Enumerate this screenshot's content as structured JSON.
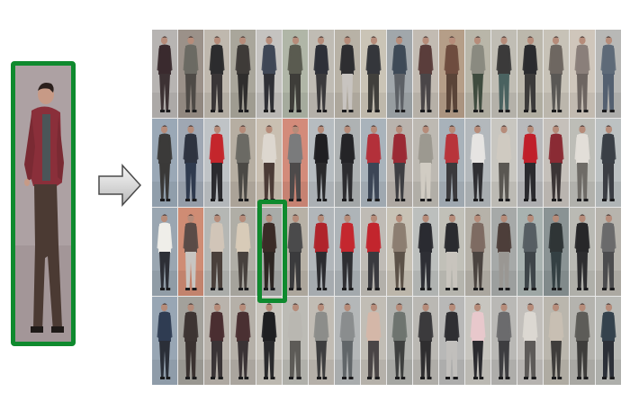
{
  "query": {
    "background": "#ada1a3",
    "jacket_color": "#8a2f3a",
    "pants_color": "#4b3a33",
    "hair_color": "#2a1f1c",
    "skin_color": "#c79a86"
  },
  "highlight_color": "#0f8a2e",
  "gallery": {
    "columns": 18,
    "rows": 4,
    "highlight_index": 40,
    "cells": [
      {
        "bg": "#b7b4b2",
        "top": "#3a2a2e",
        "bottom": "#3d3234"
      },
      {
        "bg": "#9b9189",
        "top": "#6b6a63",
        "bottom": "#4e4a46"
      },
      {
        "bg": "#bfb8ae",
        "top": "#2c2c2e",
        "bottom": "#3a3637"
      },
      {
        "bg": "#a9a69b",
        "top": "#3e3b38",
        "bottom": "#2f2e2d"
      },
      {
        "bg": "#c5c3c0",
        "top": "#3f4756",
        "bottom": "#2f3036"
      },
      {
        "bg": "#b0b6a7",
        "top": "#5a5b50",
        "bottom": "#3e3d39"
      },
      {
        "bg": "#c0bcb4",
        "top": "#2e3038",
        "bottom": "#3b3a3c"
      },
      {
        "bg": "#b8b2a6",
        "top": "#2e2e31",
        "bottom": "#c8c4c0"
      },
      {
        "bg": "#cac4b6",
        "top": "#34363b",
        "bottom": "#41403c"
      },
      {
        "bg": "#a1a7ab",
        "top": "#3e4a57",
        "bottom": "#5d6166"
      },
      {
        "bg": "#c2bbb2",
        "top": "#5a3d3b",
        "bottom": "#4a4648"
      },
      {
        "bg": "#b59e88",
        "top": "#6e4c3f",
        "bottom": "#5a4438"
      },
      {
        "bg": "#b9b6a9",
        "top": "#8a8a80",
        "bottom": "#3f4c3f"
      },
      {
        "bg": "#c0bdb4",
        "top": "#3b3a3a",
        "bottom": "#4a6260"
      },
      {
        "bg": "#bcb8ac",
        "top": "#2a2b2e",
        "bottom": "#3c3b3a"
      },
      {
        "bg": "#c7c2b7",
        "top": "#6e6761",
        "bottom": "#5a5855"
      },
      {
        "bg": "#cfc6bb",
        "top": "#8a7f7a",
        "bottom": "#6d6561"
      },
      {
        "bg": "#b8b8b6",
        "top": "#5e6a78",
        "bottom": "#546070"
      },
      {
        "bg": "#9aa8b6",
        "top": "#3b3a39",
        "bottom": "#3a3938"
      },
      {
        "bg": "#9fa7b3",
        "top": "#2e3340",
        "bottom": "#2f3a4e"
      },
      {
        "bg": "#bfc3c6",
        "top": "#c4262c",
        "bottom": "#2b2b2f"
      },
      {
        "bg": "#b6aea2",
        "top": "#6b6a64",
        "bottom": "#4b4945"
      },
      {
        "bg": "#c9bfb1",
        "top": "#ddd7cf",
        "bottom": "#4b3b36"
      },
      {
        "bg": "#d38b7a",
        "top": "#7a7b7c",
        "bottom": "#4d4a4a"
      },
      {
        "bg": "#b6bcc0",
        "top": "#1f1f22",
        "bottom": "#2a2a2c"
      },
      {
        "bg": "#aeb2b3",
        "top": "#242427",
        "bottom": "#2d2d30"
      },
      {
        "bg": "#a9b3bb",
        "top": "#b3303a",
        "bottom": "#3c4656"
      },
      {
        "bg": "#b9b3ad",
        "top": "#9b2a34",
        "bottom": "#3e3e42"
      },
      {
        "bg": "#bdb9b2",
        "top": "#9c9990",
        "bottom": "#d1ccc3"
      },
      {
        "bg": "#a8b2ba",
        "top": "#b8343b",
        "bottom": "#3b3a3d"
      },
      {
        "bg": "#b3b8bc",
        "top": "#e6e4e2",
        "bottom": "#2f2f33"
      },
      {
        "bg": "#c8c6c0",
        "top": "#cfcac1",
        "bottom": "#5a5752"
      },
      {
        "bg": "#b8b9bb",
        "top": "#c01f2a",
        "bottom": "#2a2a2e"
      },
      {
        "bg": "#c5c0ba",
        "top": "#8a2b34",
        "bottom": "#3b3536"
      },
      {
        "bg": "#bdbdb7",
        "top": "#e2ded8",
        "bottom": "#6e6b66"
      },
      {
        "bg": "#bcc1c2",
        "top": "#3a3f46",
        "bottom": "#3b3e44"
      },
      {
        "bg": "#9aa6b1",
        "top": "#efeee9",
        "bottom": "#2d2f36"
      },
      {
        "bg": "#cf8c74",
        "top": "#5a4b47",
        "bottom": "#c8c5c1"
      },
      {
        "bg": "#b5b7b4",
        "top": "#d1c5b8",
        "bottom": "#4a403b"
      },
      {
        "bg": "#b0aea6",
        "top": "#d8cbb8",
        "bottom": "#47413d"
      },
      {
        "bg": "#a8aba8",
        "top": "#3a2b27",
        "bottom": "#2d2623"
      },
      {
        "bg": "#b7b1a6",
        "top": "#4a4a4b",
        "bottom": "#3b3b3d"
      },
      {
        "bg": "#b1b6ba",
        "top": "#b0232b",
        "bottom": "#2c2c30"
      },
      {
        "bg": "#aeb4b8",
        "top": "#c4272f",
        "bottom": "#2f2f33"
      },
      {
        "bg": "#bfbbb5",
        "top": "#c2252d",
        "bottom": "#3a3a3f"
      },
      {
        "bg": "#c8c2b5",
        "top": "#8c7e71",
        "bottom": "#5c5248"
      },
      {
        "bg": "#bcbfbd",
        "top": "#2a2b31",
        "bottom": "#2e2f35"
      },
      {
        "bg": "#c1c0b8",
        "top": "#2a2b2f",
        "bottom": "#c8c4bd"
      },
      {
        "bg": "#b6b2a9",
        "top": "#7e6b62",
        "bottom": "#4b4440"
      },
      {
        "bg": "#a6a9a8",
        "top": "#4d3e3a",
        "bottom": "#9a9793"
      },
      {
        "bg": "#a8b2b0",
        "top": "#565e63",
        "bottom": "#3e4549"
      },
      {
        "bg": "#8a9394",
        "top": "#2f3536",
        "bottom": "#344043"
      },
      {
        "bg": "#babab4",
        "top": "#272729",
        "bottom": "#2e2e30"
      },
      {
        "bg": "#b7b4ad",
        "top": "#6a6a6b",
        "bottom": "#4c4c4e"
      },
      {
        "bg": "#98a6b4",
        "top": "#2f3c52",
        "bottom": "#2b2f38"
      },
      {
        "bg": "#a3a19b",
        "top": "#3d3432",
        "bottom": "#3a3230"
      },
      {
        "bg": "#b9b3ac",
        "top": "#4a2e31",
        "bottom": "#3a3436"
      },
      {
        "bg": "#b5b0a8",
        "top": "#4a3032",
        "bottom": "#3a3335"
      },
      {
        "bg": "#c8c4bc",
        "top": "#1f1f21",
        "bottom": "#2a2a2c"
      },
      {
        "bg": "#bcbbb5",
        "top": "#b9b7b1",
        "bottom": "#5d5b57"
      },
      {
        "bg": "#c1bcb4",
        "top": "#8c8d8a",
        "bottom": "#3e3e3f"
      },
      {
        "bg": "#b4b7b8",
        "top": "#8a8d8e",
        "bottom": "#616669"
      },
      {
        "bg": "#c1bdb5",
        "top": "#d4b7a8",
        "bottom": "#4a4546"
      },
      {
        "bg": "#b1b2ae",
        "top": "#6e746f",
        "bottom": "#3e403f"
      },
      {
        "bg": "#bab8b3",
        "top": "#3b3a3c",
        "bottom": "#2f2e30"
      },
      {
        "bg": "#b8b8b7",
        "top": "#2f2f33",
        "bottom": "#c1bfbc"
      },
      {
        "bg": "#c7c5bf",
        "top": "#e8c8cc",
        "bottom": "#2b2b2f"
      },
      {
        "bg": "#b9b8b5",
        "top": "#6b6b6d",
        "bottom": "#3d3d40"
      },
      {
        "bg": "#c2bfbb",
        "top": "#dcd8d2",
        "bottom": "#5d5a58"
      },
      {
        "bg": "#bab6ad",
        "top": "#c8bfb3",
        "bottom": "#3f3d3b"
      },
      {
        "bg": "#b4b3ae",
        "top": "#5d5c58",
        "bottom": "#3e3d3b"
      },
      {
        "bg": "#b9bab6",
        "top": "#34424d",
        "bottom": "#2c3038"
      }
    ]
  }
}
